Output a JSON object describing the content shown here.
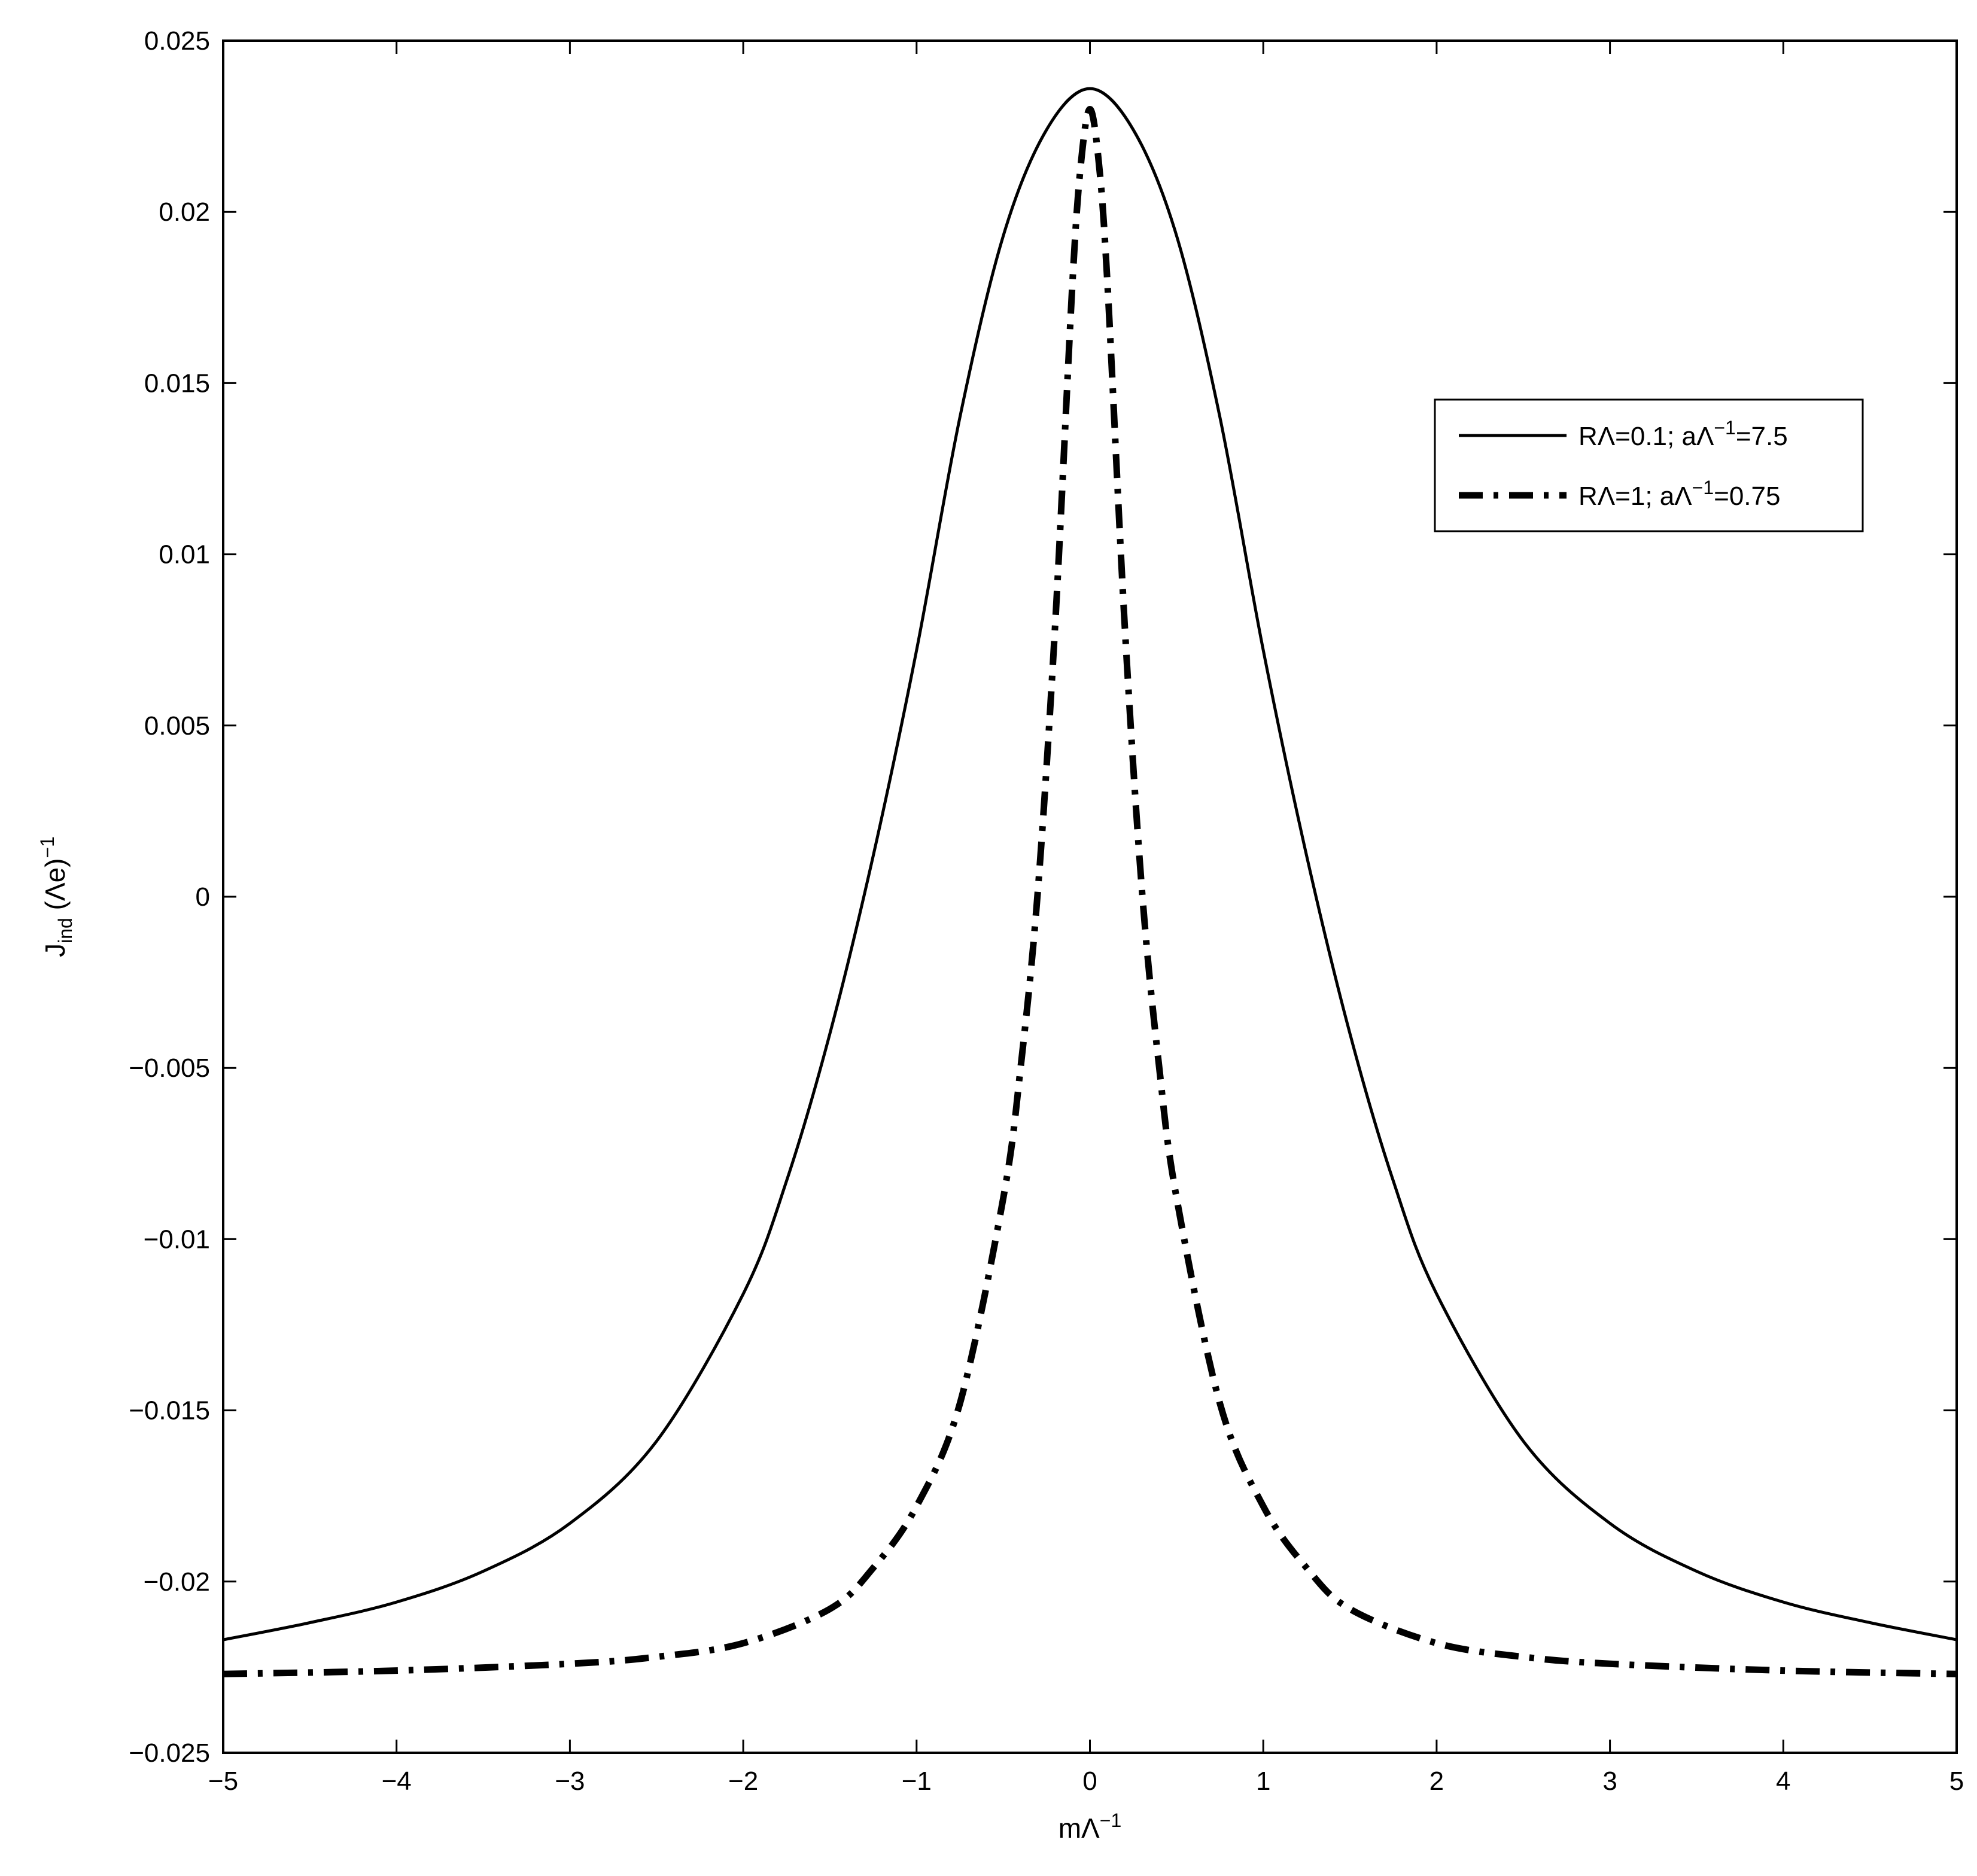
{
  "chart_data": {
    "type": "line",
    "xlabel": {
      "main": "mΛ",
      "sup": "−1"
    },
    "ylabel": {
      "main": "J",
      "sub": "ind",
      "rest": " (Λe)",
      "sup": "−1"
    },
    "xlim": [
      -5,
      5
    ],
    "ylim": [
      -0.025,
      0.025
    ],
    "xticks": [
      -5,
      -4,
      -3,
      -2,
      -1,
      0,
      1,
      2,
      3,
      4,
      5
    ],
    "xtick_labels": [
      "−5",
      "−4",
      "−3",
      "−2",
      "−1",
      "0",
      "1",
      "2",
      "3",
      "4",
      "5"
    ],
    "yticks": [
      -0.025,
      -0.02,
      -0.015,
      -0.01,
      -0.005,
      0,
      0.005,
      0.01,
      0.015,
      0.02,
      0.025
    ],
    "ytick_labels": [
      "−0.025",
      "−0.02",
      "−0.015",
      "−0.01",
      "−0.005",
      "0",
      "0.005",
      "0.01",
      "0.015",
      "0.02",
      "0.025"
    ],
    "grid": false,
    "legend_position": "top-right",
    "series": [
      {
        "legend": {
          "pre": "RΛ=0.1; aΛ",
          "sup": "−1",
          "post": "=7.5"
        },
        "style": "solid",
        "color": "#000000",
        "x": [
          -5,
          -4.5,
          -4,
          -3.5,
          -3,
          -2.5,
          -2,
          -1.75,
          -1.5,
          -1.25,
          -1,
          -0.75,
          -0.5,
          -0.25,
          0,
          0.25,
          0.5,
          0.75,
          1,
          1.25,
          1.5,
          1.75,
          2,
          2.5,
          3,
          3.5,
          4,
          4.5,
          5
        ],
        "y": [
          -0.0217,
          -0.0212,
          -0.0206,
          -0.0197,
          -0.0183,
          -0.0159,
          -0.0116,
          -0.0083,
          -0.004,
          0.0012,
          0.0072,
          0.014,
          0.0193,
          0.0224,
          0.0236,
          0.0224,
          0.0193,
          0.014,
          0.0072,
          0.0012,
          -0.004,
          -0.0083,
          -0.0116,
          -0.0159,
          -0.0183,
          -0.0197,
          -0.0206,
          -0.0212,
          -0.0217
        ]
      },
      {
        "legend": {
          "pre": "RΛ=1; aΛ",
          "sup": "−1",
          "post": "=0.75"
        },
        "style": "dash-dot",
        "color": "#000000",
        "x": [
          -5,
          -4,
          -3,
          -2.5,
          -2,
          -1.5,
          -1.25,
          -1,
          -0.75,
          -0.5,
          -0.4,
          -0.3,
          -0.2,
          -0.1,
          -0.05,
          0,
          0.05,
          0.1,
          0.2,
          0.3,
          0.4,
          0.5,
          0.75,
          1,
          1.25,
          1.5,
          2,
          2.5,
          3,
          4,
          5
        ],
        "y": [
          -0.0227,
          -0.0226,
          -0.0224,
          -0.0222,
          -0.0218,
          -0.0208,
          -0.0196,
          -0.0178,
          -0.0148,
          -0.0088,
          -0.005,
          0.0002,
          0.008,
          0.018,
          0.0215,
          0.023,
          0.0215,
          0.018,
          0.008,
          0.0002,
          -0.005,
          -0.0088,
          -0.0148,
          -0.0178,
          -0.0196,
          -0.0208,
          -0.0218,
          -0.0222,
          -0.0224,
          -0.0226,
          -0.0227
        ]
      }
    ]
  }
}
